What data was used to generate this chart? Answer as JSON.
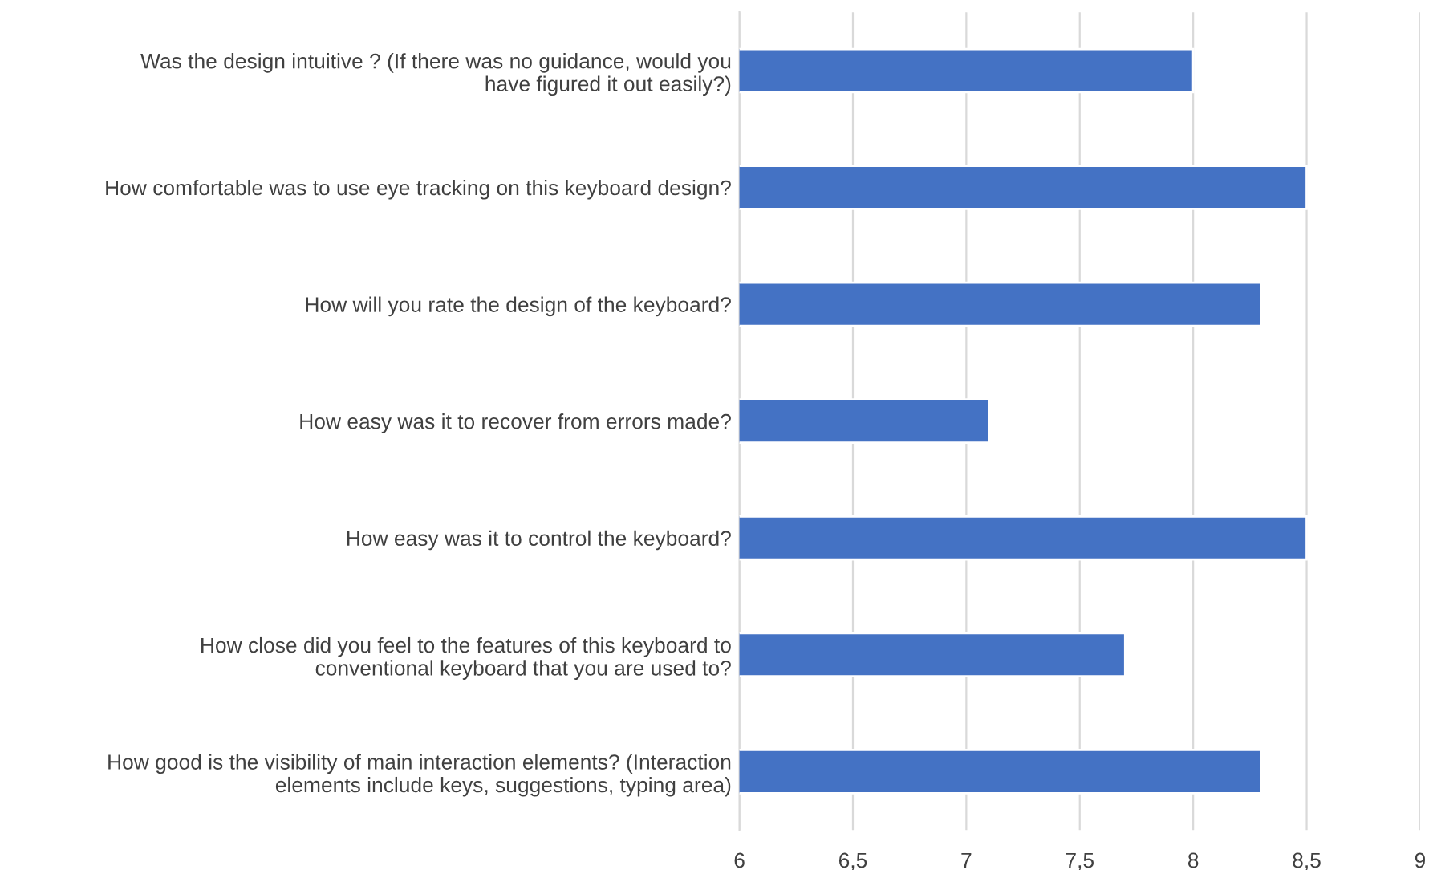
{
  "chart_data": {
    "type": "bar",
    "orientation": "horizontal",
    "categories": [
      "Was the design intuitive ? (If there was no guidance, would you\nhave figured it out easily?)",
      "How comfortable was to use eye tracking on this keyboard design?",
      "How will you rate the design of the keyboard?",
      "How easy was it to recover from errors made?",
      "How easy was it to control the keyboard?",
      "How close did you feel to the features of this keyboard to\nconventional keyboard that you are used to?",
      "How good is the visibility of main interaction elements? (Interaction\nelements include keys, suggestions, typing area)"
    ],
    "values": [
      8.0,
      8.5,
      8.3,
      7.1,
      8.5,
      7.7,
      8.3
    ],
    "color": "#4472c4",
    "xlim": [
      6,
      9
    ],
    "xticks": [
      6,
      {
        "value": 6.5,
        "label": "6,5"
      },
      7,
      {
        "value": 7.5,
        "label": "7,5"
      },
      8,
      {
        "value": 8.5,
        "label": "8,5"
      },
      9
    ],
    "grid": "x",
    "legend": false
  }
}
